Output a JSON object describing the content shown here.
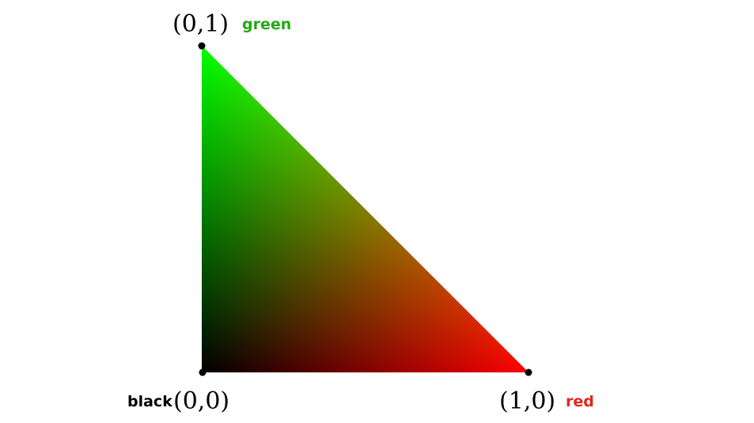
{
  "vertices": {
    "top": {
      "coord_label": "(0,1)",
      "color_label": "green",
      "color": "#00ff00",
      "label_color": "#22aa11"
    },
    "origin": {
      "coord_label": "(0,0)",
      "color_label": "black",
      "color": "#000000",
      "label_color": "#000000"
    },
    "right": {
      "coord_label": "(1,0)",
      "color_label": "red",
      "color": "#ff0000",
      "label_color": "#e8231f"
    }
  },
  "colors": {
    "vertex_dot": "#000000",
    "background": "#ffffff"
  }
}
